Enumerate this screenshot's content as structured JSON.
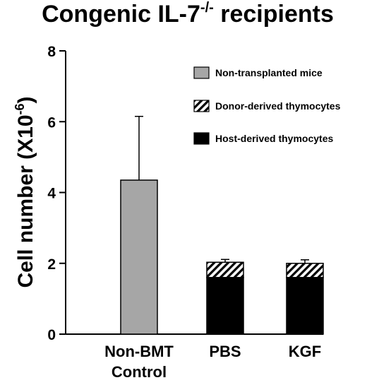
{
  "chart_data": {
    "type": "bar",
    "stacked": true,
    "title": "Congenic IL-7",
    "title_superscript": "-/-",
    "title_suffix": " recipients",
    "ylabel_main": "Cell number (X10",
    "ylabel_superscript": "-6",
    "ylabel_close": ")",
    "xlabel": "",
    "ylim": [
      0,
      8
    ],
    "yticks": [
      "0",
      "2",
      "4",
      "6",
      "8"
    ],
    "categories": [
      {
        "line1": "Non-BMT",
        "line2": "Control"
      },
      {
        "line1": "PBS",
        "line2": ""
      },
      {
        "line1": "KGF",
        "line2": ""
      }
    ],
    "series": [
      {
        "name": "Non-transplanted mice",
        "fill": "#a6a6a6",
        "values": [
          4.35,
          0,
          0
        ],
        "error": [
          1.8,
          0,
          0
        ]
      },
      {
        "name": "Host-derived thymocytes",
        "fill": "#000000",
        "values": [
          0,
          1.6,
          1.6
        ],
        "error": [
          0,
          0,
          0
        ]
      },
      {
        "name": "Donor-derived thymocytes",
        "fill": "hatch",
        "values": [
          0,
          0.43,
          0.4
        ],
        "error": [
          0,
          0.08,
          0.1
        ]
      }
    ],
    "legend": [
      {
        "name": "Non-transplanted mice",
        "fill": "#a6a6a6"
      },
      {
        "name": "Donor-derived thymocytes",
        "fill": "hatch"
      },
      {
        "name": "Host-derived thymocytes",
        "fill": "#000000"
      }
    ],
    "legend_position": "top-right",
    "grid": false
  }
}
